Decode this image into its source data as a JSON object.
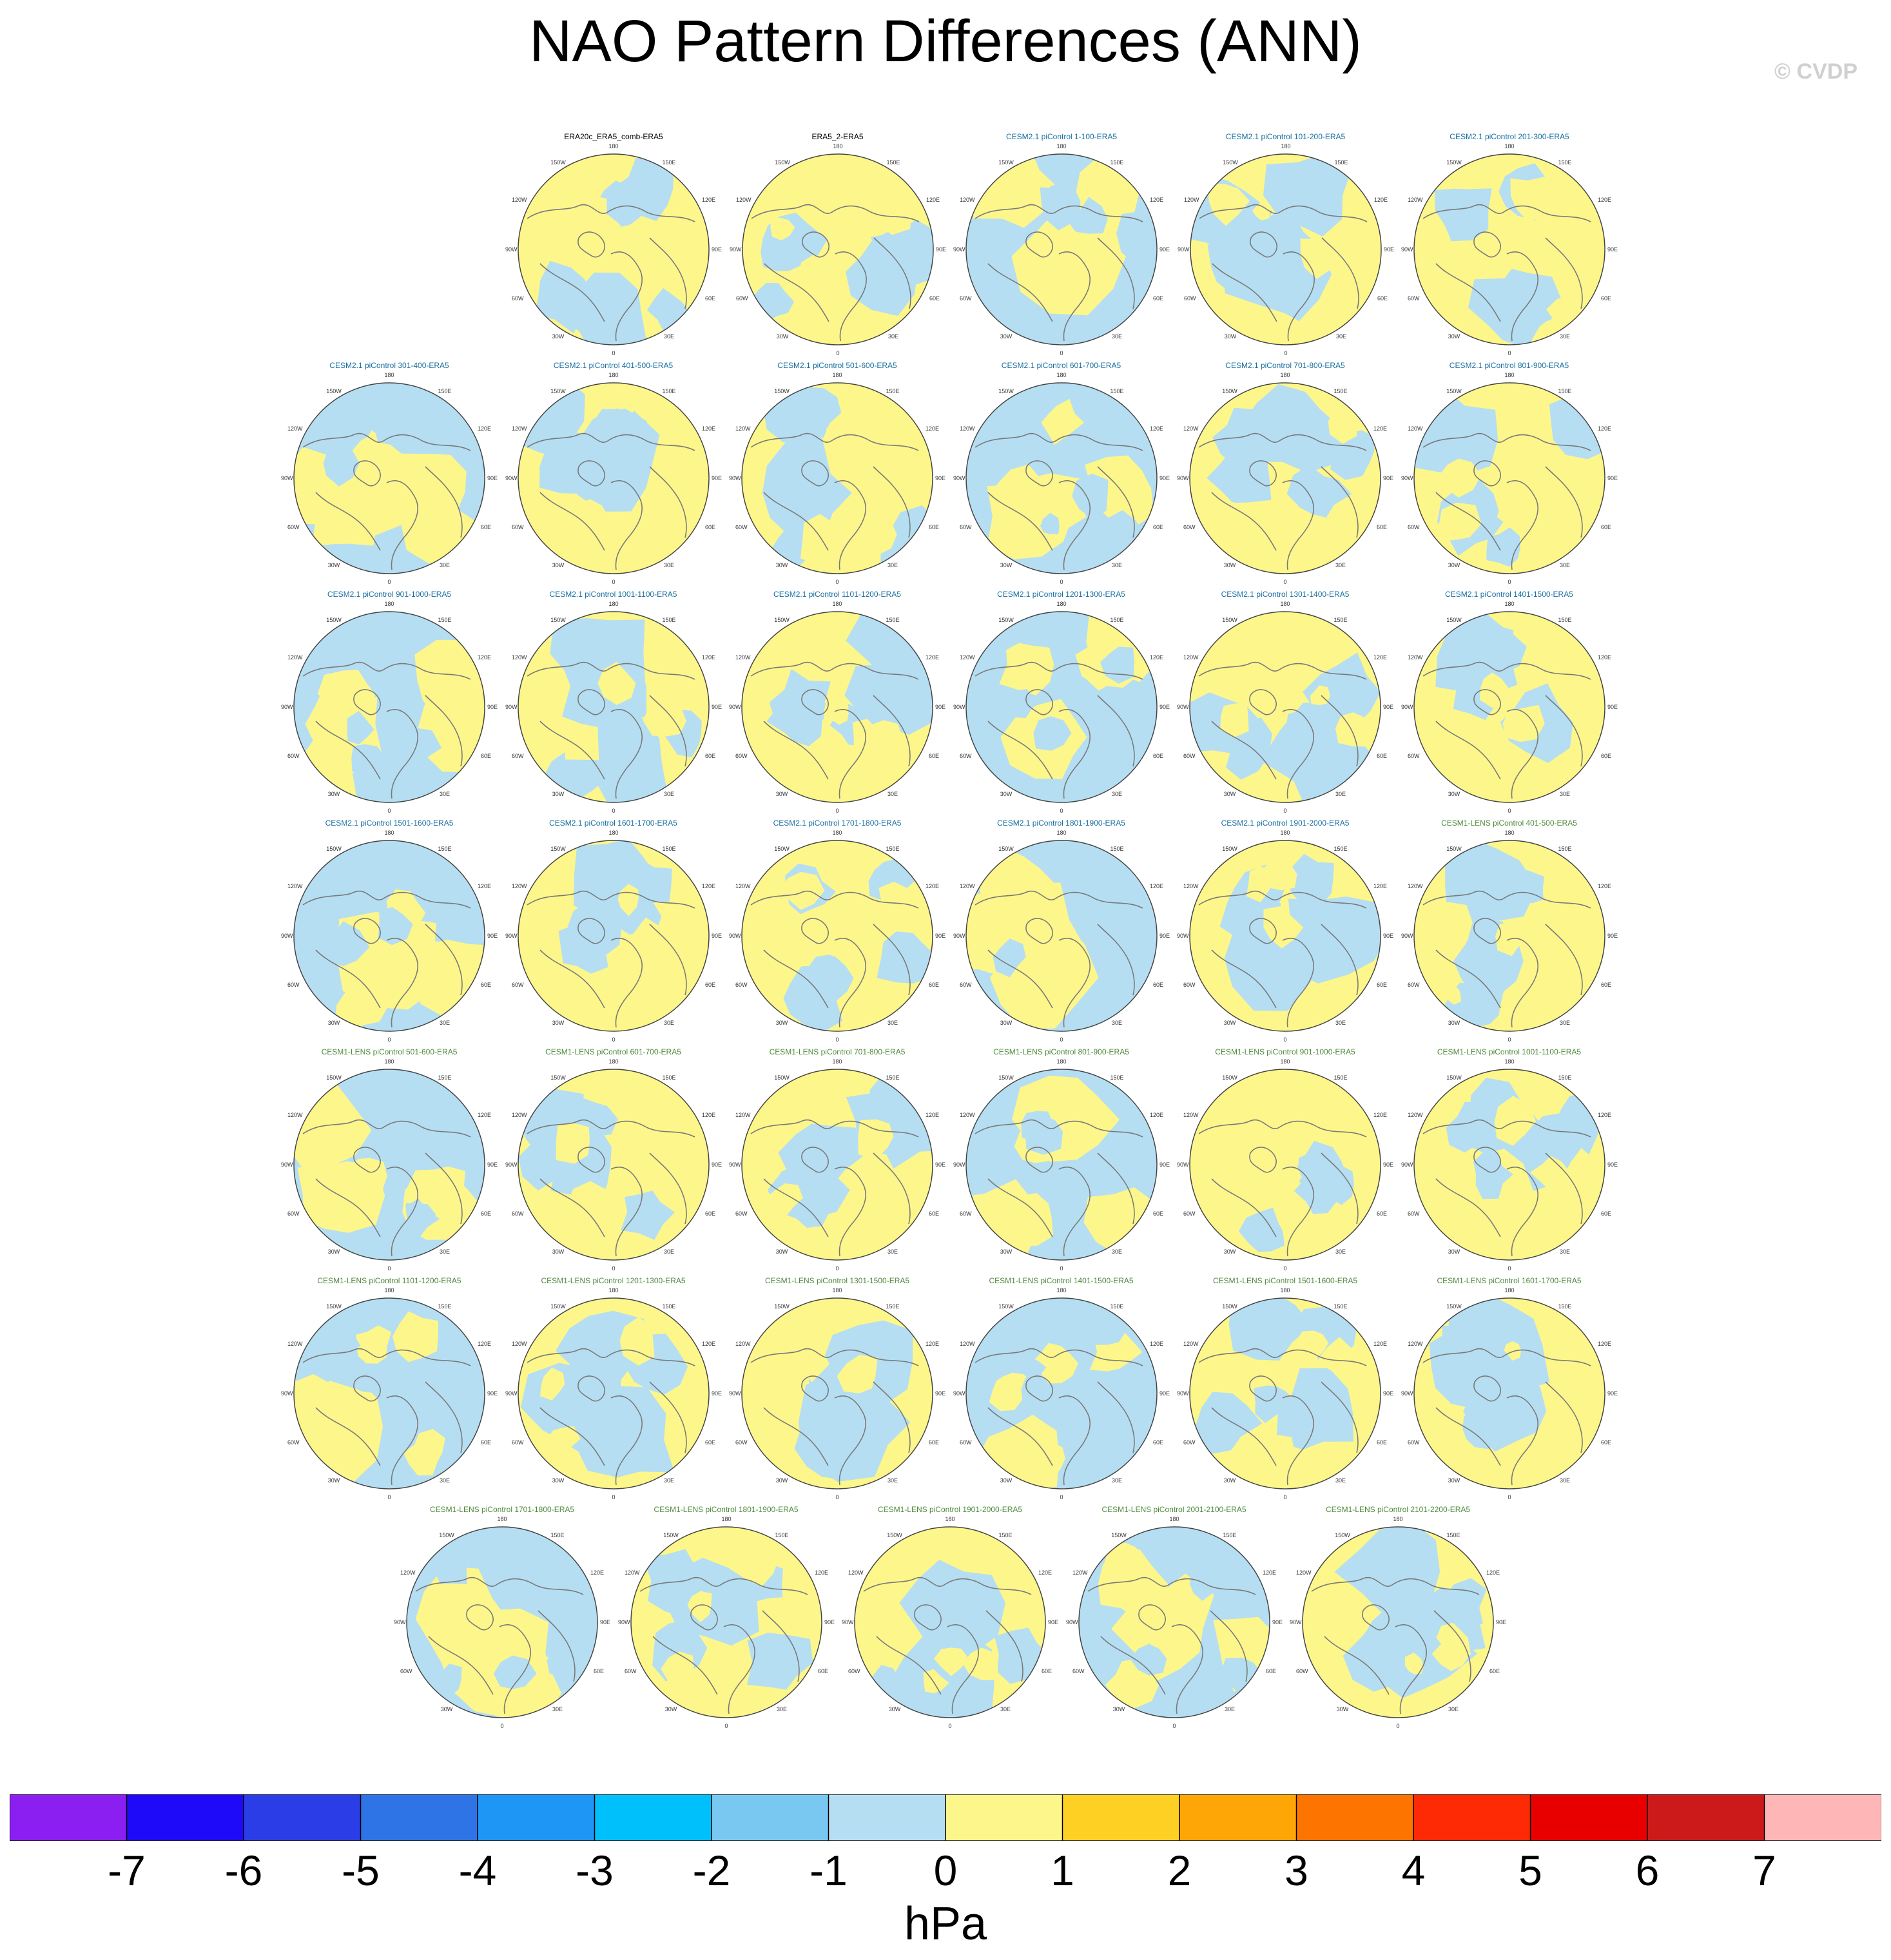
{
  "title": "NAO Pattern Differences (ANN)",
  "credit": "© CVDP",
  "map_labels": {
    "top": "180",
    "bottom": "0",
    "left_upper": "120W",
    "left_mid": "90W",
    "left_lower": "60W",
    "top_left": "150W",
    "top_right": "150E",
    "right_upper": "120E",
    "right_mid": "90E",
    "right_lower": "60E",
    "bottom_left": "30W",
    "bottom_right": "30E"
  },
  "rows": [
    {
      "panels": [
        {
          "title": "ERA20c_ERA5_comb-ERA5",
          "group": "obs"
        },
        {
          "title": "ERA5_2-ERA5",
          "group": "obs"
        },
        {
          "title": "CESM2.1 piControl 1-100-ERA5",
          "group": "cesm2"
        },
        {
          "title": "CESM2.1 piControl 101-200-ERA5",
          "group": "cesm2"
        },
        {
          "title": "CESM2.1 piControl 201-300-ERA5",
          "group": "cesm2"
        }
      ]
    },
    {
      "panels": [
        {
          "title": "CESM2.1 piControl 301-400-ERA5",
          "group": "cesm2"
        },
        {
          "title": "CESM2.1 piControl 401-500-ERA5",
          "group": "cesm2"
        },
        {
          "title": "CESM2.1 piControl 501-600-ERA5",
          "group": "cesm2"
        },
        {
          "title": "CESM2.1 piControl 601-700-ERA5",
          "group": "cesm2"
        },
        {
          "title": "CESM2.1 piControl 701-800-ERA5",
          "group": "cesm2"
        },
        {
          "title": "CESM2.1 piControl 801-900-ERA5",
          "group": "cesm2"
        }
      ]
    },
    {
      "panels": [
        {
          "title": "CESM2.1 piControl 901-1000-ERA5",
          "group": "cesm2"
        },
        {
          "title": "CESM2.1 piControl 1001-1100-ERA5",
          "group": "cesm2"
        },
        {
          "title": "CESM2.1 piControl 1101-1200-ERA5",
          "group": "cesm2"
        },
        {
          "title": "CESM2.1 piControl 1201-1300-ERA5",
          "group": "cesm2"
        },
        {
          "title": "CESM2.1 piControl 1301-1400-ERA5",
          "group": "cesm2"
        },
        {
          "title": "CESM2.1 piControl 1401-1500-ERA5",
          "group": "cesm2"
        }
      ]
    },
    {
      "panels": [
        {
          "title": "CESM2.1 piControl 1501-1600-ERA5",
          "group": "cesm2"
        },
        {
          "title": "CESM2.1 piControl 1601-1700-ERA5",
          "group": "cesm2"
        },
        {
          "title": "CESM2.1 piControl 1701-1800-ERA5",
          "group": "cesm2"
        },
        {
          "title": "CESM2.1 piControl 1801-1900-ERA5",
          "group": "cesm2"
        },
        {
          "title": "CESM2.1 piControl 1901-2000-ERA5",
          "group": "cesm2"
        },
        {
          "title": "CESM1-LENS piControl 401-500-ERA5",
          "group": "cesm1"
        }
      ]
    },
    {
      "panels": [
        {
          "title": "CESM1-LENS piControl 501-600-ERA5",
          "group": "cesm1"
        },
        {
          "title": "CESM1-LENS piControl 601-700-ERA5",
          "group": "cesm1"
        },
        {
          "title": "CESM1-LENS piControl 701-800-ERA5",
          "group": "cesm1"
        },
        {
          "title": "CESM1-LENS piControl 801-900-ERA5",
          "group": "cesm1"
        },
        {
          "title": "CESM1-LENS piControl 901-1000-ERA5",
          "group": "cesm1"
        },
        {
          "title": "CESM1-LENS piControl 1001-1100-ERA5",
          "group": "cesm1"
        }
      ]
    },
    {
      "panels": [
        {
          "title": "CESM1-LENS piControl 1101-1200-ERA5",
          "group": "cesm1"
        },
        {
          "title": "CESM1-LENS piControl 1201-1300-ERA5",
          "group": "cesm1"
        },
        {
          "title": "CESM1-LENS piControl 1301-1500-ERA5",
          "group": "cesm1"
        },
        {
          "title": "CESM1-LENS piControl 1401-1500-ERA5",
          "group": "cesm1"
        },
        {
          "title": "CESM1-LENS piControl 1501-1600-ERA5",
          "group": "cesm1"
        },
        {
          "title": "CESM1-LENS piControl 1601-1700-ERA5",
          "group": "cesm1"
        }
      ]
    },
    {
      "panels": [
        {
          "title": "CESM1-LENS piControl 1701-1800-ERA5",
          "group": "cesm1"
        },
        {
          "title": "CESM1-LENS piControl 1801-1900-ERA5",
          "group": "cesm1"
        },
        {
          "title": "CESM1-LENS piControl 1901-2000-ERA5",
          "group": "cesm1"
        },
        {
          "title": "CESM1-LENS piControl 2001-2100-ERA5",
          "group": "cesm1"
        },
        {
          "title": "CESM1-LENS piControl 2101-2200-ERA5",
          "group": "cesm1"
        }
      ]
    }
  ],
  "colorbar": {
    "units": "hPa",
    "tick_labels": [
      "-7",
      "-6",
      "-5",
      "-4",
      "-3",
      "-2",
      "-1",
      "0",
      "1",
      "2",
      "3",
      "4",
      "5",
      "6",
      "7"
    ],
    "colors": [
      "#8b1ef0",
      "#1e0af8",
      "#2b3de6",
      "#2f74e6",
      "#1e96f5",
      "#00c0fb",
      "#78c8f2",
      "#b5def2",
      "#fdf68b",
      "#fed024",
      "#fea605",
      "#fe7400",
      "#fd2a05",
      "#e80000",
      "#cc1a1a",
      "#ffb6b6"
    ]
  },
  "colors": {
    "positive_fill": "#fdf68b",
    "negative_fill": "#b5def2",
    "coastline": "#7a7a7a"
  }
}
